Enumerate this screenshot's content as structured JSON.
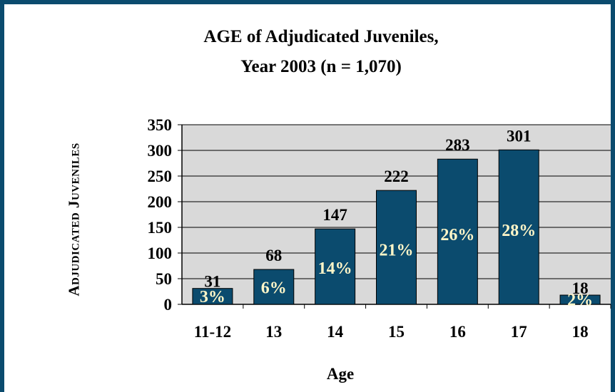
{
  "chart_data": {
    "type": "bar",
    "title": "AGE of Adjudicated Juveniles,",
    "subtitle": "Year 2003 (n = 1,070)",
    "xlabel": "Age",
    "ylabel": "Adjudicated Juveniles",
    "categories": [
      "11-12",
      "13",
      "14",
      "15",
      "16",
      "17",
      "18"
    ],
    "values": [
      31,
      68,
      147,
      222,
      283,
      301,
      18
    ],
    "value_labels": [
      "31",
      "68",
      "147",
      "222",
      "283",
      "301",
      "18"
    ],
    "percent_labels": [
      "3%",
      "6%",
      "14%",
      "21%",
      "26%",
      "28%",
      "2%"
    ],
    "ylim": [
      0,
      350
    ],
    "yticks": [
      "0",
      "50",
      "100",
      "150",
      "200",
      "250",
      "300",
      "350"
    ],
    "grid": true,
    "legend": "none",
    "colors": {
      "bar": "#0b4b6e",
      "bar_outline": "#000000",
      "plot_background": "#d9d9d9",
      "percent_text": "#fff6c8",
      "frame": "#0b4b6e"
    }
  }
}
